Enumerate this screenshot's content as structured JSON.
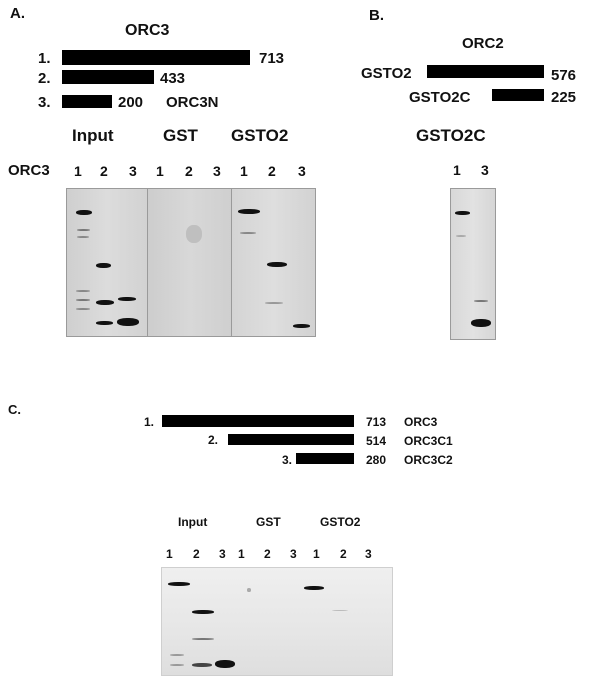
{
  "panelA": {
    "label": "A.",
    "title": "ORC3",
    "constructs": [
      {
        "num": "1.",
        "len": "713",
        "name": ""
      },
      {
        "num": "2.",
        "len": "433",
        "name": ""
      },
      {
        "num": "3.",
        "len": "200",
        "name": "ORC3N"
      }
    ],
    "gel_headers": [
      "Input",
      "GST",
      "GSTO2"
    ],
    "row_label": "ORC3",
    "lanes": [
      "1",
      "2",
      "3",
      "1",
      "2",
      "3",
      "1",
      "2",
      "3"
    ]
  },
  "panelB": {
    "label": "B.",
    "title": "ORC2",
    "constructs": [
      {
        "name": "GSTO2",
        "len": "576"
      },
      {
        "name": "GSTO2C",
        "len": "225"
      }
    ],
    "gel_header": "GSTO2C",
    "lanes": [
      "1",
      "3"
    ]
  },
  "panelC": {
    "label": "C.",
    "constructs": [
      {
        "num": "1.",
        "len": "713",
        "name": "ORC3"
      },
      {
        "num": "2.",
        "len": "514",
        "name": "ORC3C1"
      },
      {
        "num": "3.",
        "len": "280",
        "name": "ORC3C2"
      }
    ],
    "gel_headers": [
      "Input",
      "GST",
      "GSTO2"
    ],
    "lanes": [
      "1",
      "2",
      "3",
      "1",
      "2",
      "3",
      "1",
      "2",
      "3"
    ]
  }
}
